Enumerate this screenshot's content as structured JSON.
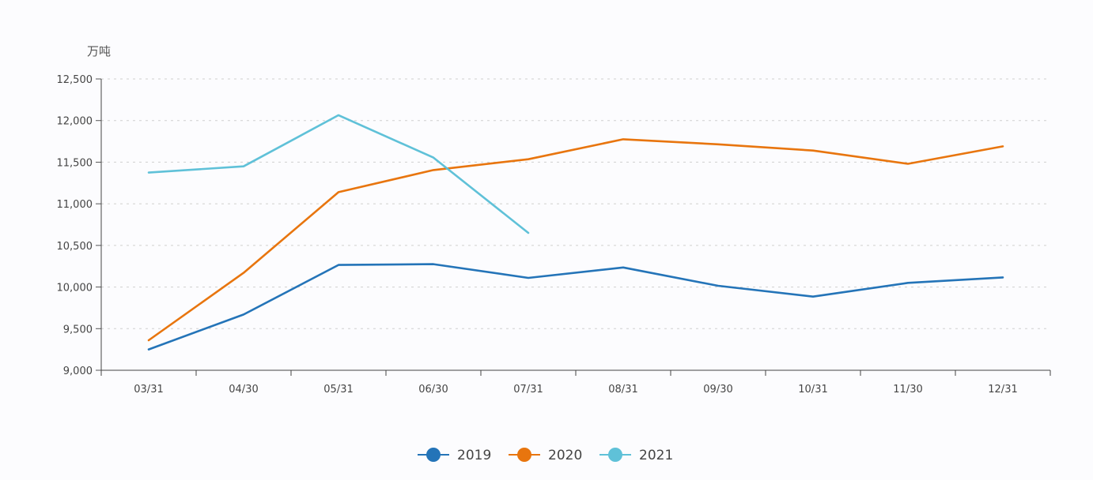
{
  "chart_data": {
    "type": "line",
    "title": "",
    "xlabel": "",
    "ylabel": "万吨",
    "categories": [
      "03/31",
      "04/30",
      "05/31",
      "06/30",
      "07/31",
      "08/31",
      "09/30",
      "10/31",
      "11/30",
      "12/31"
    ],
    "ylim": [
      9000,
      12500
    ],
    "yticks": [
      9000,
      9500,
      10000,
      10500,
      11000,
      11500,
      12000,
      12500
    ],
    "ytick_labels": [
      "9,000",
      "9,500",
      "10,000",
      "10,500",
      "11,000",
      "11,500",
      "12,000",
      "12,500"
    ],
    "grid": "horizontal-dashed",
    "legend": "bottom-center",
    "series": [
      {
        "name": "2019",
        "color": "#2474b8",
        "values": [
          9250,
          9670,
          10265,
          10275,
          10110,
          10235,
          10015,
          9885,
          10050,
          10115
        ]
      },
      {
        "name": "2020",
        "color": "#e8750e",
        "values": [
          9360,
          10170,
          11140,
          11405,
          11535,
          11775,
          11715,
          11640,
          11480,
          11690
        ]
      },
      {
        "name": "2021",
        "color": "#5fc1d8",
        "values": [
          11375,
          11450,
          12065,
          11555,
          10650,
          null,
          null,
          null,
          null,
          null
        ]
      }
    ]
  }
}
